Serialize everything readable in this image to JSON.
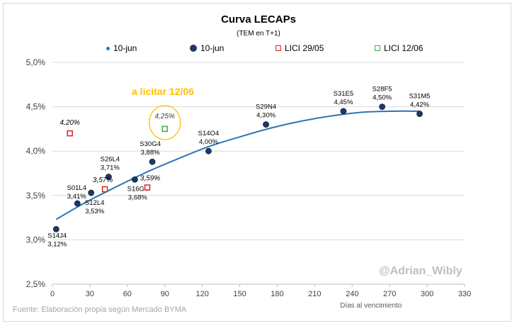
{
  "chart_data": {
    "type": "scatter",
    "title": "Curva LECAPs",
    "subtitle": "(TEM en T+1)",
    "xlabel": "Días al vencimiento",
    "ylabel": "",
    "xlim": [
      0,
      330
    ],
    "ylim": [
      2.5,
      5.0
    ],
    "x_ticks": [
      "0",
      "30",
      "60",
      "90",
      "120",
      "150",
      "180",
      "210",
      "240",
      "270",
      "300",
      "330"
    ],
    "y_ticks": [
      "2,5%",
      "3,0%",
      "3,5%",
      "4,0%",
      "4,5%",
      "5,0%"
    ],
    "grid": "horizontal",
    "legend_position": "top",
    "legend": [
      {
        "label": "10-jun",
        "kind": "trendline",
        "color": "#2e75b6"
      },
      {
        "label": "10-jun",
        "kind": "marker",
        "color": "#1f3864"
      },
      {
        "label": "LICI 29/05",
        "kind": "square",
        "color": "#e02020"
      },
      {
        "label": "LICI 12/06",
        "kind": "square",
        "color": "#3cb043"
      }
    ],
    "series": [
      {
        "name": "10-jun",
        "color": "#1f3864",
        "points": [
          {
            "x": 3,
            "y": 3.12,
            "ticker": "S14J4",
            "value_label": "3,12%"
          },
          {
            "x": 20,
            "y": 3.41,
            "ticker": "S01L4",
            "value_label": "3,41%"
          },
          {
            "x": 31,
            "y": 3.53,
            "ticker": "S12L4",
            "value_label": "3,53%"
          },
          {
            "x": 45,
            "y": 3.71,
            "ticker": "S26L4",
            "value_label": "3,71%"
          },
          {
            "x": 66,
            "y": 3.68,
            "ticker": "S16G4",
            "value_label": "3,68%"
          },
          {
            "x": 80,
            "y": 3.88,
            "ticker": "S30G4",
            "value_label": "3,88%"
          },
          {
            "x": 125,
            "y": 4.0,
            "ticker": "S14O4",
            "value_label": "4,00%"
          },
          {
            "x": 171,
            "y": 4.3,
            "ticker": "S29N4",
            "value_label": "4,30%"
          },
          {
            "x": 233,
            "y": 4.45,
            "ticker": "S31E5",
            "value_label": "4,45%"
          },
          {
            "x": 264,
            "y": 4.5,
            "ticker": "S28F5",
            "value_label": "4,50%"
          },
          {
            "x": 294,
            "y": 4.42,
            "ticker": "S31M5",
            "value_label": "4,42%"
          }
        ]
      },
      {
        "name": "LICI 29/05",
        "color": "#e02020",
        "points": [
          {
            "x": 14,
            "y": 4.2,
            "value_label": "4,20%"
          },
          {
            "x": 42,
            "y": 3.57,
            "value_label": "3,57%"
          },
          {
            "x": 76,
            "y": 3.59,
            "value_label": "3,59%"
          }
        ]
      },
      {
        "name": "LICI 12/06",
        "color": "#3cb043",
        "points": [
          {
            "x": 90,
            "y": 4.25,
            "value_label": "4,25%"
          }
        ]
      }
    ],
    "trendline": {
      "name": "10-jun",
      "color": "#2e75b6",
      "x_range": [
        3,
        294
      ],
      "samples": [
        {
          "x": 3,
          "y": 3.23
        },
        {
          "x": 25,
          "y": 3.41
        },
        {
          "x": 50,
          "y": 3.59
        },
        {
          "x": 75,
          "y": 3.76
        },
        {
          "x": 100,
          "y": 3.91
        },
        {
          "x": 125,
          "y": 4.05
        },
        {
          "x": 150,
          "y": 4.16
        },
        {
          "x": 175,
          "y": 4.26
        },
        {
          "x": 200,
          "y": 4.34
        },
        {
          "x": 225,
          "y": 4.4
        },
        {
          "x": 250,
          "y": 4.44
        },
        {
          "x": 275,
          "y": 4.45
        },
        {
          "x": 294,
          "y": 4.45
        }
      ]
    },
    "annotations": {
      "callout": "a licitar 12/06",
      "callout_color": "#ffc000",
      "source": "Fuente: Elaboración propia según Mercado BYMA",
      "watermark": "@Adrian_Wibly"
    }
  }
}
